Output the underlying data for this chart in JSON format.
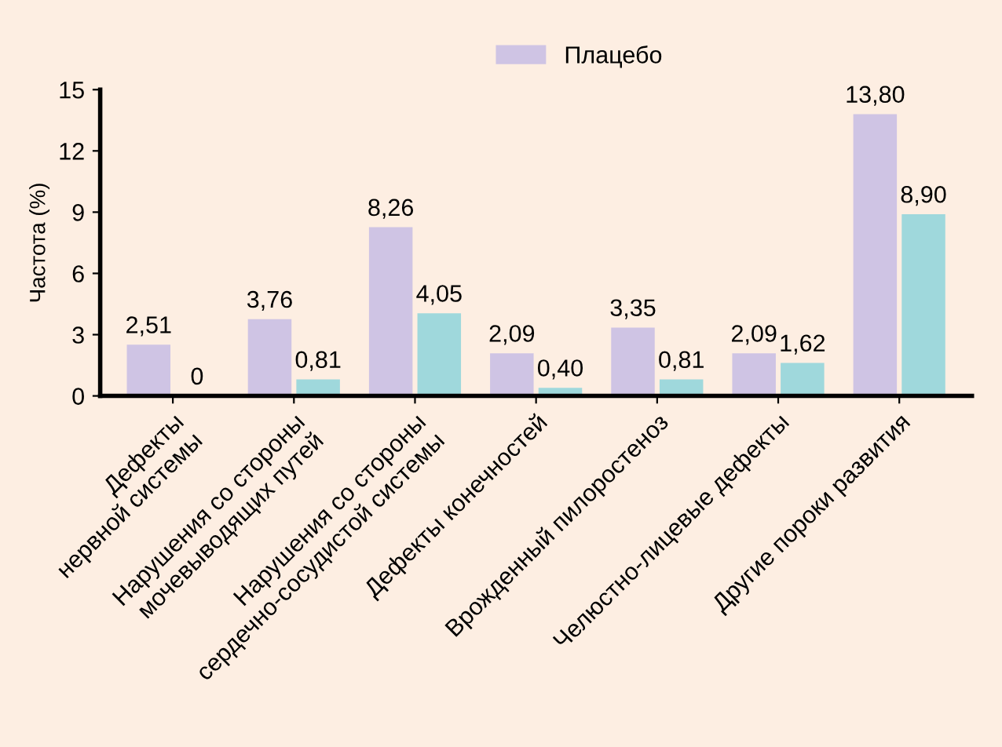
{
  "chart_data": {
    "type": "bar",
    "ylabel": "Частота (%)",
    "categories": [
      "Дефекты\nнервной системы",
      "Нарушения со стороны\nмочевыводящих путей",
      "Нарушения со стороны\nсердечно-сосудистой системы",
      "Дефекты конечностей",
      "Врожденный пилоростеноз",
      "Челюстно-лицевые дефекты",
      "Другие пороки развития"
    ],
    "series": [
      {
        "name": "Плацебо",
        "color": "#cfc4e4",
        "values": [
          2.51,
          3.76,
          8.26,
          2.09,
          3.35,
          2.09,
          13.8
        ],
        "value_labels": [
          "2,51",
          "3,76",
          "8,26",
          "2,09",
          "3,35",
          "2,09",
          "13,80"
        ]
      },
      {
        "color": "#9fd8dc",
        "values": [
          0,
          0.81,
          4.05,
          0.4,
          0.81,
          1.62,
          8.9
        ],
        "value_labels": [
          "0",
          "0,81",
          "4,05",
          "0,40",
          "0,81",
          "1,62",
          "8,90"
        ]
      }
    ],
    "ylim": [
      0,
      15
    ],
    "yticks": [
      0,
      3,
      6,
      9,
      12,
      15
    ],
    "grid": false,
    "legend": "top"
  }
}
